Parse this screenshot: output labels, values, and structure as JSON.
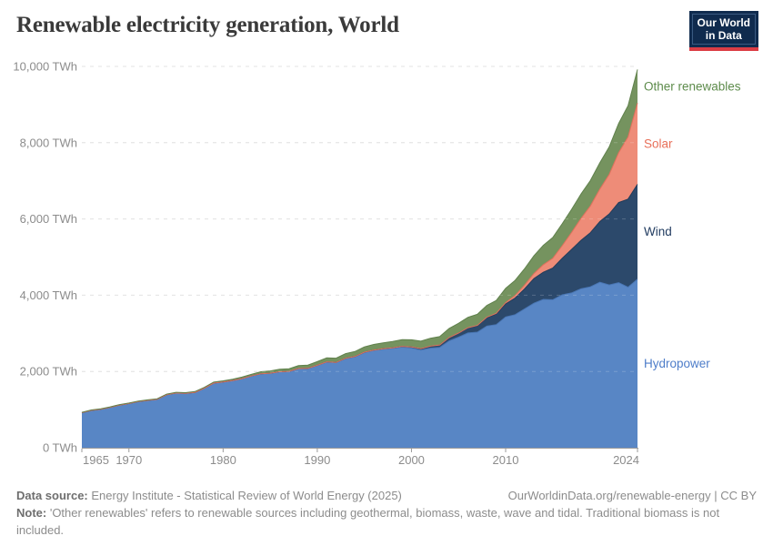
{
  "header": {
    "title": "Renewable electricity generation, World"
  },
  "logo": {
    "line1": "Our World",
    "line2": "in Data",
    "bg": "#102b4e",
    "accent": "#dc3d45"
  },
  "chart_data": {
    "type": "area",
    "stacked": true,
    "title": "Renewable electricity generation, World",
    "xlabel": "",
    "ylabel": "TWh",
    "unit": "TWh",
    "grid": "horizontal-dashed",
    "legend_position": "inline-right",
    "ylim": [
      0,
      10000
    ],
    "yticks": [
      {
        "value": 0,
        "label": "0 TWh"
      },
      {
        "value": 2000,
        "label": "2,000 TWh"
      },
      {
        "value": 4000,
        "label": "4,000 TWh"
      },
      {
        "value": 6000,
        "label": "6,000 TWh"
      },
      {
        "value": 8000,
        "label": "8,000 TWh"
      },
      {
        "value": 10000,
        "label": "10,000 TWh"
      }
    ],
    "xticks": [
      {
        "value": 1965,
        "label": "1965"
      },
      {
        "value": 1970,
        "label": "1970"
      },
      {
        "value": 1980,
        "label": "1980"
      },
      {
        "value": 1990,
        "label": "1990"
      },
      {
        "value": 2000,
        "label": "2000"
      },
      {
        "value": 2010,
        "label": "2010"
      },
      {
        "value": 2024,
        "label": "2024"
      }
    ],
    "x": [
      1965,
      1966,
      1967,
      1968,
      1969,
      1970,
      1971,
      1972,
      1973,
      1974,
      1975,
      1976,
      1977,
      1978,
      1979,
      1980,
      1981,
      1982,
      1983,
      1984,
      1985,
      1986,
      1987,
      1988,
      1989,
      1990,
      1991,
      1992,
      1993,
      1994,
      1995,
      1996,
      1997,
      1998,
      1999,
      2000,
      2001,
      2002,
      2003,
      2004,
      2005,
      2006,
      2007,
      2008,
      2009,
      2010,
      2011,
      2012,
      2013,
      2014,
      2015,
      2016,
      2017,
      2018,
      2019,
      2020,
      2021,
      2022,
      2023,
      2024
    ],
    "series": [
      {
        "name": "Hydropower",
        "color": "#5886c5",
        "edge": "#4976b4",
        "label_color": "#4e7dc9",
        "values": [
          919,
          979,
          1007,
          1060,
          1118,
          1160,
          1209,
          1241,
          1269,
          1389,
          1435,
          1425,
          1452,
          1558,
          1695,
          1723,
          1762,
          1812,
          1880,
          1941,
          1954,
          1992,
          2000,
          2074,
          2078,
          2159,
          2250,
          2231,
          2340,
          2385,
          2497,
          2553,
          2582,
          2605,
          2637,
          2613,
          2560,
          2610,
          2630,
          2802,
          2900,
          3010,
          3030,
          3190,
          3230,
          3430,
          3490,
          3640,
          3790,
          3890,
          3880,
          4010,
          4060,
          4170,
          4220,
          4340,
          4270,
          4330,
          4210,
          4420
        ]
      },
      {
        "name": "Wind",
        "color": "#2c496b",
        "edge": "#223c5a",
        "label_color": "#1f3a5f",
        "values": [
          0,
          0,
          0,
          0,
          0,
          0,
          0,
          0,
          0,
          0,
          0,
          0,
          0,
          0,
          0,
          0,
          0,
          0,
          0,
          0,
          1,
          1,
          2,
          2,
          3,
          4,
          4,
          5,
          6,
          7,
          8,
          9,
          12,
          16,
          21,
          31,
          38,
          52,
          63,
          85,
          104,
          133,
          171,
          221,
          276,
          342,
          437,
          523,
          646,
          712,
          831,
          960,
          1140,
          1270,
          1420,
          1590,
          1860,
          2100,
          2310,
          2490
        ]
      },
      {
        "name": "Solar",
        "color": "#ee8c78",
        "edge": "#e0715c",
        "label_color": "#e8705a",
        "values": [
          0,
          0,
          0,
          0,
          0,
          0,
          0,
          0,
          0,
          0,
          0,
          0,
          0,
          0,
          0,
          0,
          0,
          0,
          0,
          0,
          0,
          0,
          0,
          0,
          0,
          0,
          0,
          0,
          0,
          0,
          0,
          0,
          0,
          0,
          0,
          1,
          1,
          2,
          2,
          3,
          4,
          5,
          7,
          12,
          20,
          32,
          63,
          97,
          132,
          197,
          256,
          328,
          445,
          574,
          701,
          853,
          1040,
          1310,
          1630,
          2130
        ]
      },
      {
        "name": "Other renewables",
        "color": "#75935f",
        "edge": "#60814c",
        "label_color": "#5d8b4b",
        "values": [
          10,
          11,
          11,
          12,
          13,
          13,
          14,
          15,
          16,
          17,
          18,
          19,
          21,
          24,
          27,
          31,
          35,
          40,
          46,
          52,
          59,
          64,
          70,
          77,
          85,
          95,
          104,
          112,
          121,
          130,
          140,
          148,
          156,
          165,
          175,
          185,
          196,
          207,
          218,
          238,
          254,
          272,
          290,
          310,
          335,
          375,
          400,
          430,
          465,
          510,
          545,
          575,
          605,
          640,
          665,
          690,
          720,
          765,
          820,
          880
        ]
      }
    ]
  },
  "footer": {
    "source_label": "Data source:",
    "source_text": " Energy Institute - Statistical Review of World Energy (2025)",
    "link": "OurWorldinData.org/renewable-energy",
    "separator": " | ",
    "license": "CC BY",
    "note_label": "Note:",
    "note_text": " 'Other renewables' refers to renewable sources including geothermal, biomass, waste, wave and tidal. Traditional biomass is not included."
  }
}
